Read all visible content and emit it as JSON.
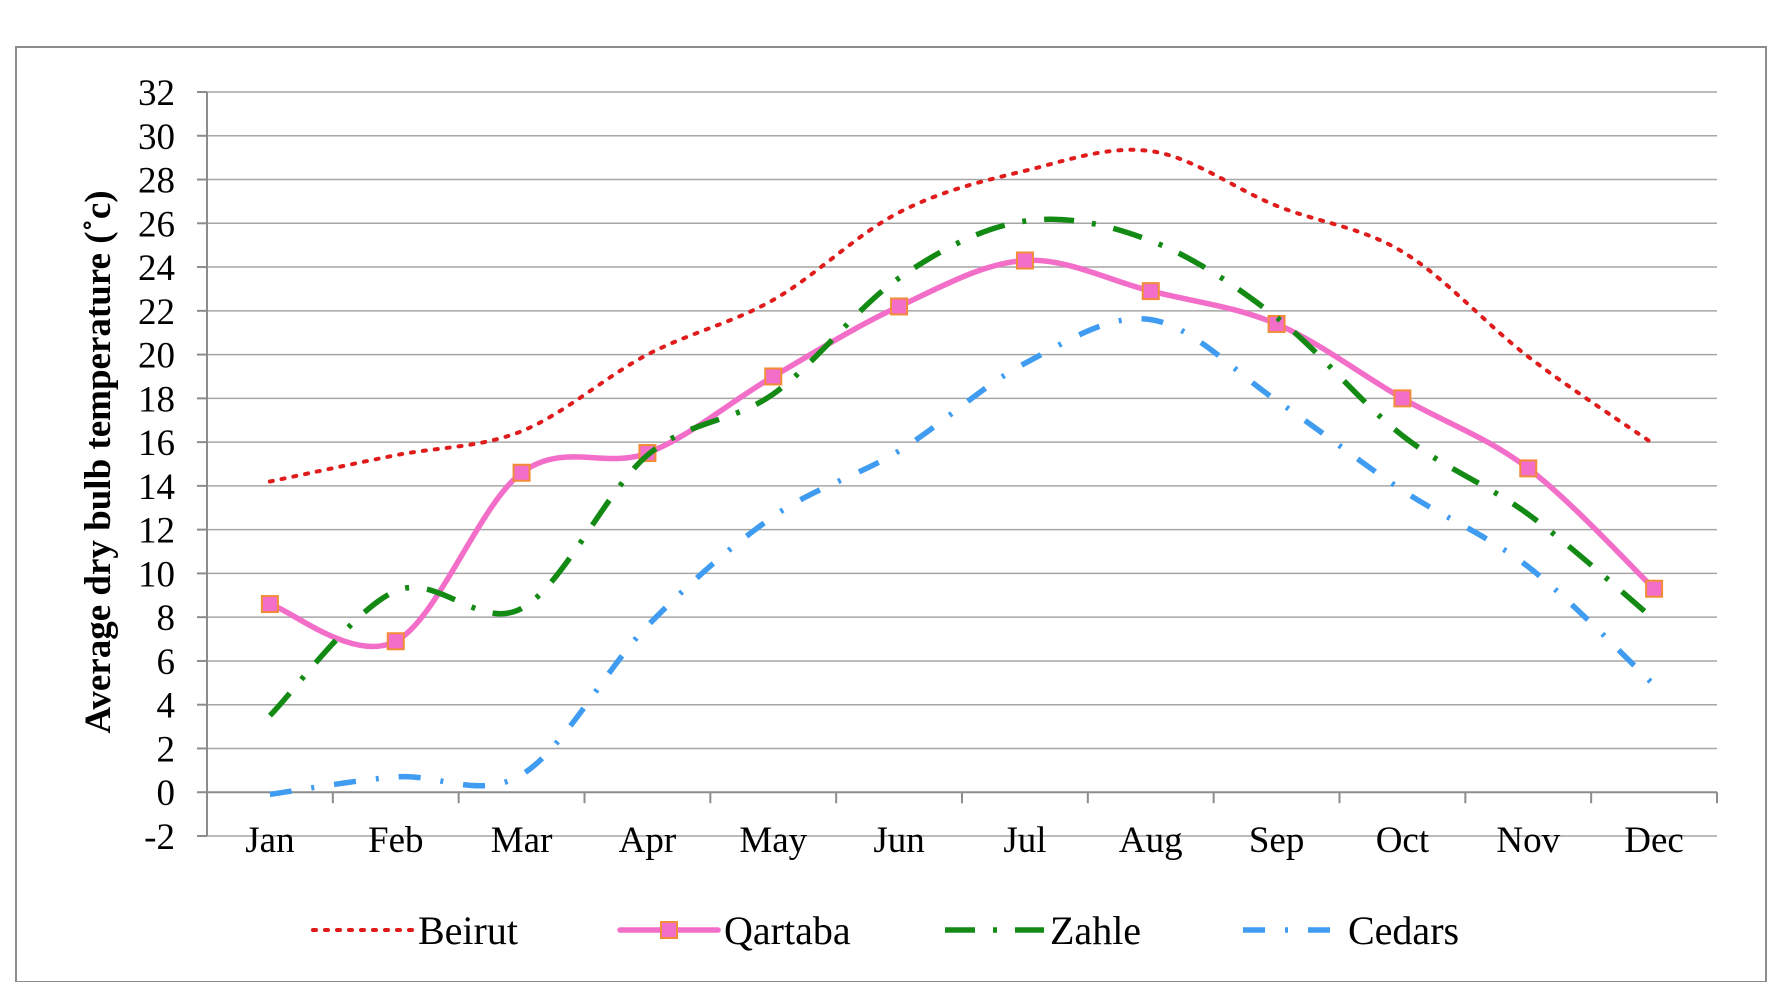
{
  "chart_data": {
    "type": "line",
    "title": "",
    "xlabel": "",
    "ylabel": "Average dry bulb temperature (˚c)",
    "categories": [
      "Jan",
      "Feb",
      "Mar",
      "Apr",
      "May",
      "Jun",
      "Jul",
      "Aug",
      "Sep",
      "Oct",
      "Nov",
      "Dec"
    ],
    "ylim": [
      -2,
      32
    ],
    "yticks": [
      -2,
      0,
      2,
      4,
      6,
      8,
      10,
      12,
      14,
      16,
      18,
      20,
      22,
      24,
      26,
      28,
      30,
      32
    ],
    "grid": true,
    "legend_position": "bottom",
    "series": [
      {
        "name": "Beirut",
        "style": "dotted",
        "color": "#e01b1b",
        "markers": false,
        "values": [
          14.2,
          15.4,
          16.5,
          20.0,
          22.5,
          26.5,
          28.4,
          29.3,
          26.8,
          24.7,
          19.9,
          15.9
        ]
      },
      {
        "name": "Qartaba",
        "style": "solid",
        "color": "#f26ec8",
        "markers": true,
        "values": [
          8.6,
          6.9,
          14.6,
          15.5,
          19.0,
          22.2,
          24.3,
          22.9,
          21.4,
          18.0,
          14.8,
          9.3
        ]
      },
      {
        "name": "Zahle",
        "style": "dash-dot",
        "color": "#138a13",
        "markers": false,
        "values": [
          3.5,
          9.2,
          8.4,
          15.4,
          18.2,
          23.5,
          26.1,
          25.2,
          21.7,
          16.3,
          12.7,
          7.9
        ]
      },
      {
        "name": "Cedars",
        "style": "dash-dot",
        "color": "#3f9cf0",
        "markers": false,
        "values": [
          -0.1,
          0.7,
          0.8,
          7.6,
          12.6,
          15.6,
          19.6,
          21.6,
          17.9,
          13.8,
          10.3,
          4.9
        ]
      }
    ]
  }
}
